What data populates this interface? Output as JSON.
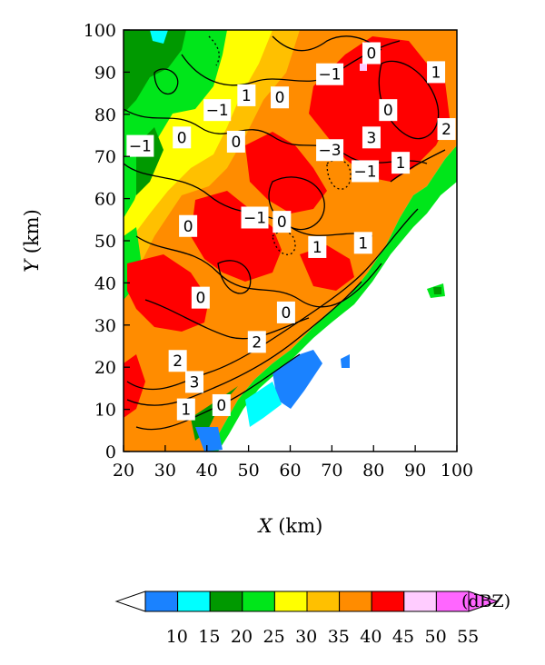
{
  "chart_data": {
    "type": "heatmap",
    "title": "",
    "xlabel": {
      "italic": "X",
      "unit": "(km)"
    },
    "ylabel": {
      "italic": "Y",
      "unit": "(km)"
    },
    "xlim": [
      20,
      100
    ],
    "ylim": [
      0,
      100
    ],
    "xticks": [
      20,
      30,
      40,
      50,
      60,
      70,
      80,
      90,
      100
    ],
    "yticks": [
      0,
      10,
      20,
      30,
      40,
      50,
      60,
      70,
      80,
      90,
      100
    ],
    "grid": false,
    "colorbar": {
      "orientation": "horizontal",
      "position": "bottom",
      "unit": "(dBZ)",
      "ticks": [
        10,
        15,
        20,
        25,
        30,
        35,
        40,
        45,
        50,
        55
      ],
      "colors": [
        "#1a82ff",
        "#00ffff",
        "#009900",
        "#00e61a",
        "#ffff00",
        "#ffc000",
        "#ff8c00",
        "#ff0000",
        "#ffccff",
        "#ff66ff"
      ],
      "extend": "both"
    },
    "contour_labels": [
      {
        "text": "0",
        "x": 79.5,
        "y": 94.5
      },
      {
        "text": "−1",
        "x": 69.5,
        "y": 89.5
      },
      {
        "text": "1",
        "x": 95,
        "y": 90
      },
      {
        "text": "1",
        "x": 49.5,
        "y": 84.5
      },
      {
        "text": "0",
        "x": 57.5,
        "y": 84
      },
      {
        "text": "−1",
        "x": 42.5,
        "y": 81
      },
      {
        "text": "0",
        "x": 83.5,
        "y": 81
      },
      {
        "text": "2",
        "x": 97.5,
        "y": 76.5
      },
      {
        "text": "3",
        "x": 79.5,
        "y": 74.5
      },
      {
        "text": "−1",
        "x": 24,
        "y": 72.5
      },
      {
        "text": "0",
        "x": 34,
        "y": 74.5
      },
      {
        "text": "0",
        "x": 47,
        "y": 73.5
      },
      {
        "text": "−3",
        "x": 69.5,
        "y": 71.5
      },
      {
        "text": "1",
        "x": 86.5,
        "y": 68.5
      },
      {
        "text": "−1",
        "x": 78,
        "y": 66.5
      },
      {
        "text": "−1",
        "x": 51.5,
        "y": 55.5
      },
      {
        "text": "0",
        "x": 58,
        "y": 54.5
      },
      {
        "text": "0",
        "x": 35.5,
        "y": 53.5
      },
      {
        "text": "1",
        "x": 66.5,
        "y": 48.5
      },
      {
        "text": "1",
        "x": 77.5,
        "y": 49.5
      },
      {
        "text": "0",
        "x": 38.5,
        "y": 36.5
      },
      {
        "text": "0",
        "x": 59,
        "y": 33
      },
      {
        "text": "2",
        "x": 52,
        "y": 26
      },
      {
        "text": "2",
        "x": 33,
        "y": 21.5
      },
      {
        "text": "3",
        "x": 37,
        "y": 16.5
      },
      {
        "text": "1",
        "x": 35,
        "y": 10
      },
      {
        "text": "0",
        "x": 43.5,
        "y": 11
      }
    ]
  }
}
